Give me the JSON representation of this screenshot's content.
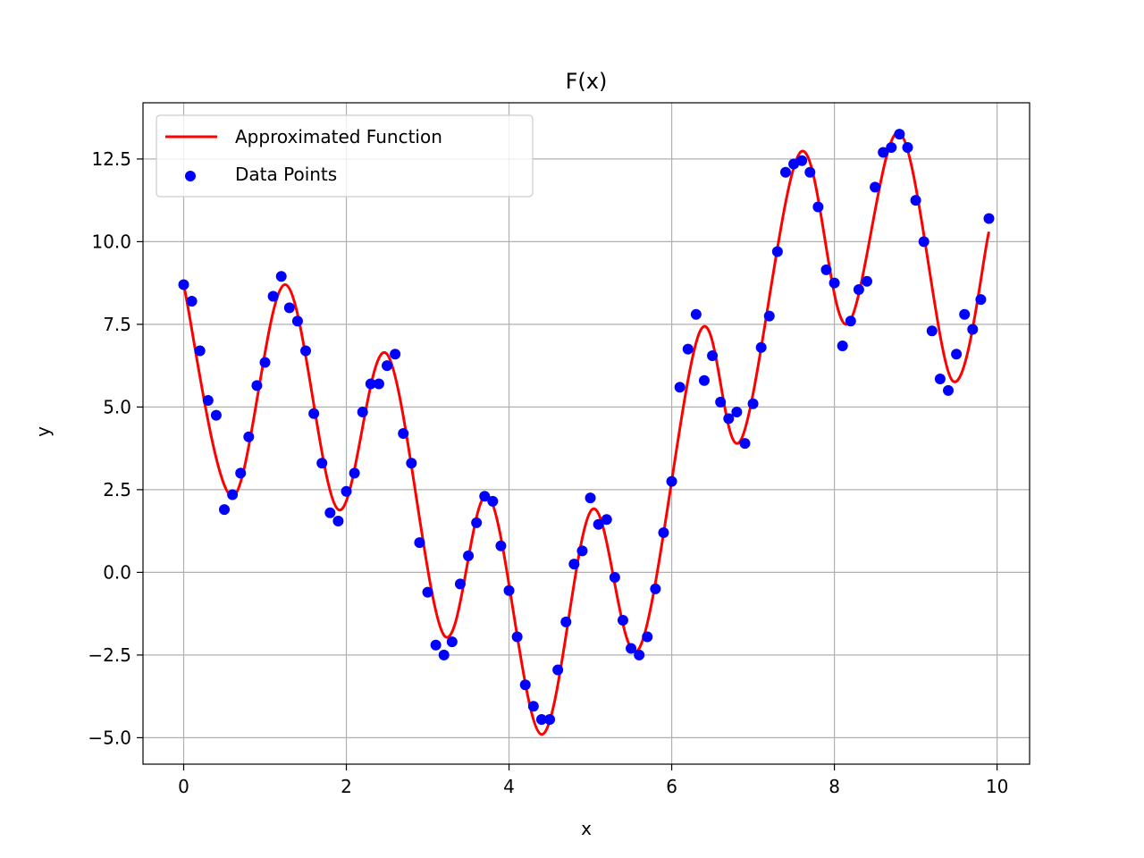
{
  "chart_data": {
    "type": "line",
    "title": "F(x)",
    "xlabel": "x",
    "ylabel": "y",
    "xlim": [
      -0.5,
      10.4
    ],
    "ylim": [
      -5.8,
      14.2
    ],
    "xticks": [
      0,
      2,
      4,
      6,
      8,
      10
    ],
    "yticks": [
      -5.0,
      -2.5,
      0.0,
      2.5,
      5.0,
      7.5,
      10.0,
      12.5
    ],
    "xtick_labels": [
      "0",
      "2",
      "4",
      "6",
      "8",
      "10"
    ],
    "ytick_labels": [
      "−5.0",
      "−2.5",
      "0.0",
      "2.5",
      "5.0",
      "7.5",
      "10.0",
      "12.5"
    ],
    "grid": true,
    "legend_position": "upper-left",
    "colors": {
      "line": "#ff0000",
      "points": "#0000ff"
    },
    "series": [
      {
        "name": "Approximated Function",
        "kind": "line",
        "x": [
          0,
          0.6,
          1.25,
          1.9,
          2.5,
          3.2,
          3.75,
          4.4,
          5.02,
          5.6,
          6.35,
          6.85,
          7.58,
          8.15,
          8.8,
          9.45,
          9.9
        ],
        "y": [
          8.7,
          2.3,
          8.7,
          1.9,
          6.6,
          -1.9,
          2.3,
          -4.9,
          1.9,
          -2.3,
          7.3,
          4.0,
          12.7,
          7.5,
          13.3,
          5.8,
          10.3
        ]
      },
      {
        "name": "Data Points",
        "kind": "scatter",
        "x": [
          0.0,
          0.1,
          0.2,
          0.3,
          0.4,
          0.5,
          0.6,
          0.7,
          0.8,
          0.9,
          1.0,
          1.1,
          1.2,
          1.3,
          1.4,
          1.5,
          1.6,
          1.7,
          1.8,
          1.9,
          2.0,
          2.1,
          2.2,
          2.3,
          2.4,
          2.5,
          2.6,
          2.7,
          2.8,
          2.9,
          3.0,
          3.1,
          3.2,
          3.3,
          3.4,
          3.5,
          3.6,
          3.7,
          3.8,
          3.9,
          4.0,
          4.1,
          4.2,
          4.3,
          4.4,
          4.5,
          4.6,
          4.7,
          4.8,
          4.9,
          5.0,
          5.1,
          5.2,
          5.3,
          5.4,
          5.5,
          5.6,
          5.7,
          5.8,
          5.9,
          6.0,
          6.1,
          6.2,
          6.3,
          6.4,
          6.5,
          6.6,
          6.7,
          6.8,
          6.9,
          7.0,
          7.1,
          7.2,
          7.3,
          7.4,
          7.5,
          7.6,
          7.7,
          7.8,
          7.9,
          8.0,
          8.1,
          8.2,
          8.3,
          8.4,
          8.5,
          8.6,
          8.7,
          8.8,
          8.9,
          9.0,
          9.1,
          9.2,
          9.3,
          9.4,
          9.5,
          9.6,
          9.7,
          9.8,
          9.9
        ],
        "y": [
          8.7,
          8.2,
          6.7,
          5.2,
          4.75,
          1.9,
          2.35,
          3.0,
          4.1,
          5.65,
          6.35,
          8.35,
          8.95,
          8.0,
          7.6,
          6.7,
          4.8,
          3.3,
          1.8,
          1.55,
          2.45,
          3.0,
          4.85,
          5.7,
          5.7,
          6.25,
          6.6,
          4.2,
          3.3,
          0.9,
          -0.6,
          -2.2,
          -2.5,
          -2.1,
          -0.35,
          0.5,
          1.5,
          2.3,
          2.15,
          0.8,
          -0.55,
          -1.95,
          -3.4,
          -4.05,
          -4.45,
          -4.45,
          -2.95,
          -1.5,
          0.25,
          0.65,
          2.25,
          1.45,
          1.6,
          -0.15,
          -1.45,
          -2.3,
          -2.5,
          -1.95,
          -0.5,
          1.2,
          2.75,
          5.6,
          6.75,
          7.8,
          5.8,
          6.55,
          5.15,
          4.65,
          4.85,
          3.9,
          5.1,
          6.8,
          7.75,
          9.7,
          12.1,
          12.35,
          12.45,
          12.1,
          11.05,
          9.15,
          8.75,
          6.85,
          7.6,
          8.55,
          8.8,
          11.65,
          12.7,
          12.85,
          13.25,
          12.85,
          11.25,
          10.0,
          7.3,
          5.85,
          5.5,
          6.6,
          7.8,
          7.35,
          8.25,
          10.7
        ]
      }
    ]
  }
}
